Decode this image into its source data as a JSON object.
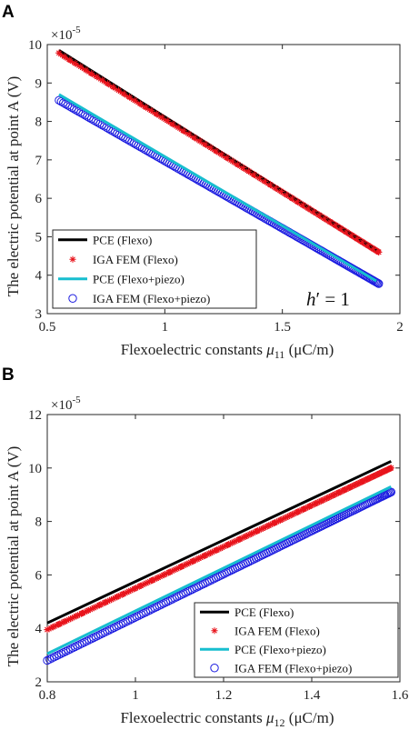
{
  "chart_data": [
    {
      "panel": "A",
      "type": "line",
      "ylabel": "The electric potential at point A (V)",
      "xlabel_prefix": "Flexoelectric constants ",
      "xlabel_symbol": "μ",
      "xlabel_sub": "11",
      "xlabel_unit": " (μC/m)",
      "y_multiplier_base": "×10",
      "y_multiplier_exp": "-5",
      "xlim": [
        0.5,
        2
      ],
      "ylim": [
        3,
        10
      ],
      "xticks": [
        0.5,
        1,
        1.5,
        2
      ],
      "yticks": [
        3,
        4,
        5,
        6,
        7,
        8,
        9,
        10
      ],
      "xtick_labels": [
        "0.5",
        "1",
        "1.5",
        "2"
      ],
      "ytick_labels": [
        "3",
        "4",
        "5",
        "6",
        "7",
        "8",
        "9",
        "10"
      ],
      "annotation_main": "h",
      "annotation_rest": "′ = 1",
      "legend_position": "bottom-left",
      "series": [
        {
          "name": "PCE (Flexo)",
          "style": "line",
          "color": "#000000",
          "x": [
            0.55,
            1.9
          ],
          "y": [
            9.85,
            4.65
          ]
        },
        {
          "name": "IGA FEM (Flexo)",
          "style": "star",
          "color": "#e8141c",
          "x": [
            0.55,
            1.91
          ],
          "y": [
            9.78,
            4.6
          ]
        },
        {
          "name": "PCE (Flexo+piezo)",
          "style": "line",
          "color": "#17becf",
          "x": [
            0.55,
            1.9
          ],
          "y": [
            8.7,
            3.85
          ]
        },
        {
          "name": "IGA FEM (Flexo+piezo)",
          "style": "circle",
          "color": "#1c1ce0",
          "x": [
            0.55,
            1.91
          ],
          "y": [
            8.55,
            3.78
          ]
        }
      ]
    },
    {
      "panel": "B",
      "type": "line",
      "ylabel": "The electric potential at point A (V)",
      "xlabel_prefix": "Flexoelectric constants ",
      "xlabel_symbol": "μ",
      "xlabel_sub": "12",
      "xlabel_unit": " (μC/m)",
      "y_multiplier_base": "×10",
      "y_multiplier_exp": "-5",
      "xlim": [
        0.8,
        1.6
      ],
      "ylim": [
        2,
        12
      ],
      "xticks": [
        0.8,
        1,
        1.2,
        1.4,
        1.6
      ],
      "yticks": [
        2,
        4,
        6,
        8,
        10,
        12
      ],
      "xtick_labels": [
        "0.8",
        "1",
        "1.2",
        "1.4",
        "1.6"
      ],
      "ytick_labels": [
        "2",
        "4",
        "6",
        "8",
        "10",
        "12"
      ],
      "legend_position": "bottom-right",
      "series": [
        {
          "name": "PCE (Flexo)",
          "style": "line",
          "color": "#000000",
          "x": [
            0.8,
            1.58
          ],
          "y": [
            4.2,
            10.25
          ]
        },
        {
          "name": "IGA FEM (Flexo)",
          "style": "star",
          "color": "#e8141c",
          "x": [
            0.8,
            1.58
          ],
          "y": [
            3.95,
            10.0
          ]
        },
        {
          "name": "PCE (Flexo+piezo)",
          "style": "line",
          "color": "#17becf",
          "x": [
            0.8,
            1.58
          ],
          "y": [
            3.05,
            9.3
          ]
        },
        {
          "name": "IGA FEM (Flexo+piezo)",
          "style": "circle",
          "color": "#1c1ce0",
          "x": [
            0.8,
            1.58
          ],
          "y": [
            2.8,
            9.1
          ]
        }
      ]
    }
  ]
}
